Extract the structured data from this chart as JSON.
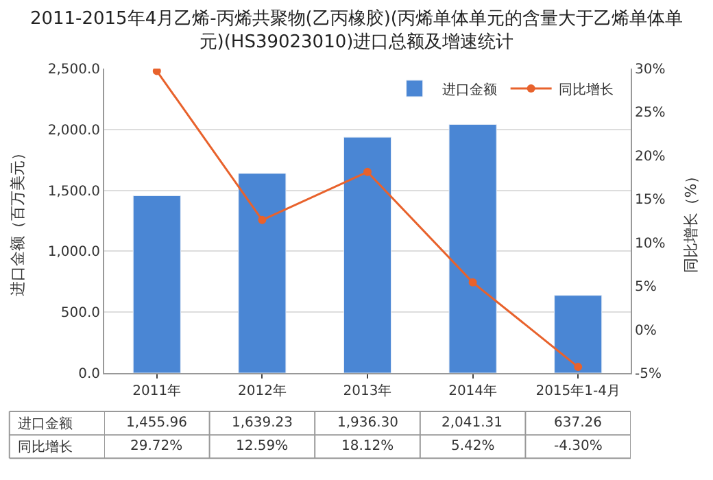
{
  "chart_data": {
    "type": "bar",
    "title": "2011-2015年4月乙烯-丙烯共聚物(乙丙橡胶)(丙烯单体单元的含量大于乙烯单体单元)(HS39023010)进口总额及增速统计",
    "ylabel": "进口金额（百万美元）",
    "y2label": "同比增长（%）",
    "categories": [
      "2011年",
      "2012年",
      "2013年",
      "2014年",
      "2015年1-4月"
    ],
    "series": [
      {
        "name": "进口金额",
        "color": "#4a86d4",
        "values": [
          1455.96,
          1639.23,
          1936.3,
          2041.31,
          637.26
        ],
        "value_labels": [
          "1,455.96",
          "1,639.23",
          "1,936.30",
          "2,041.31",
          "637.26"
        ]
      },
      {
        "name": "同比增长",
        "type": "line",
        "axis": "y2",
        "color": "#e8622c",
        "marker": "circle",
        "values": [
          29.72,
          12.59,
          18.12,
          5.42,
          -4.3
        ],
        "value_labels": [
          "29.72%",
          "12.59%",
          "18.12%",
          "5.42%",
          "-4.30%"
        ]
      }
    ],
    "ylim": [
      0,
      2500
    ],
    "yticks": [
      {
        "value": 0,
        "label": "0.0"
      },
      {
        "value": 500,
        "label": "500.0"
      },
      {
        "value": 1000,
        "label": "1,000.0"
      },
      {
        "value": 1500,
        "label": "1,500.0"
      },
      {
        "value": 2000,
        "label": "2,000.0"
      },
      {
        "value": 2500,
        "label": "2,500.0"
      }
    ],
    "y2lim": [
      -5,
      30
    ],
    "y2ticks": [
      {
        "value": -5,
        "label": "-5%"
      },
      {
        "value": 0,
        "label": "0%"
      },
      {
        "value": 5,
        "label": "5%"
      },
      {
        "value": 10,
        "label": "10%"
      },
      {
        "value": 15,
        "label": "15%"
      },
      {
        "value": 20,
        "label": "20%"
      },
      {
        "value": 25,
        "label": "25%"
      },
      {
        "value": 30,
        "label": "30%"
      }
    ],
    "grid": "y",
    "legend": "top right"
  }
}
